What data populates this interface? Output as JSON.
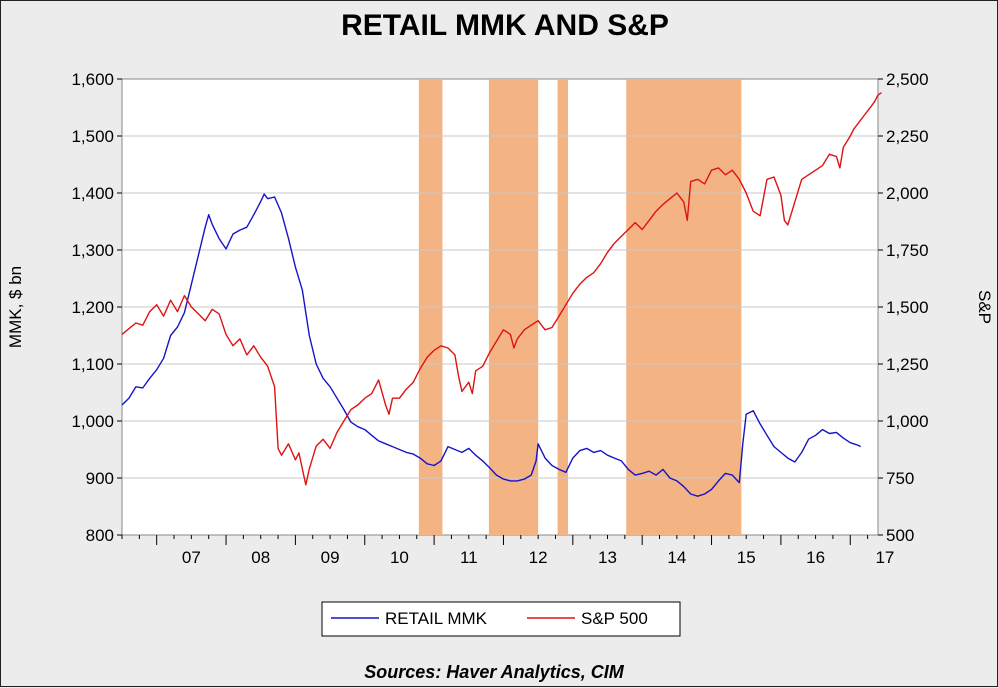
{
  "chart_data": {
    "type": "line",
    "title": "RETAIL MMK AND S&P",
    "ylabel_left": "MMK, $ bn",
    "ylabel_right": "S&P",
    "source": "Sources:  Haver Analytics, CIM",
    "x_ticks": [
      "07",
      "08",
      "09",
      "10",
      "11",
      "12",
      "13",
      "14",
      "15",
      "16",
      "17"
    ],
    "x_range": [
      2006.5,
      2017.4
    ],
    "y_left": {
      "range": [
        800,
        1600
      ],
      "ticks": [
        "800",
        "900",
        "1,000",
        "1,100",
        "1,200",
        "1,300",
        "1,400",
        "1,500",
        "1,600"
      ],
      "tick_values": [
        800,
        900,
        1000,
        1100,
        1200,
        1300,
        1400,
        1500,
        1600
      ]
    },
    "y_right": {
      "range": [
        500,
        2500
      ],
      "ticks": [
        "500",
        "750",
        "1,000",
        "1,250",
        "1,500",
        "1,750",
        "2,000",
        "2,250",
        "2,500"
      ],
      "tick_values": [
        500,
        750,
        1000,
        1250,
        1500,
        1750,
        2000,
        2250,
        2500
      ]
    },
    "grid": true,
    "legend_position": "bottom",
    "shaded_periods": [
      [
        2010.78,
        2011.12
      ],
      [
        2011.79,
        2012.5
      ],
      [
        2012.78,
        2012.93
      ],
      [
        2013.77,
        2015.43
      ]
    ],
    "shade_color": "#f3b383",
    "series": [
      {
        "name": "RETAIL MMK",
        "axis": "left",
        "color": "#1515c8",
        "points": [
          [
            2006.5,
            1028
          ],
          [
            2006.6,
            1040
          ],
          [
            2006.7,
            1060
          ],
          [
            2006.8,
            1058
          ],
          [
            2006.9,
            1075
          ],
          [
            2007.0,
            1090
          ],
          [
            2007.1,
            1110
          ],
          [
            2007.2,
            1150
          ],
          [
            2007.3,
            1165
          ],
          [
            2007.4,
            1190
          ],
          [
            2007.5,
            1240
          ],
          [
            2007.6,
            1290
          ],
          [
            2007.7,
            1340
          ],
          [
            2007.75,
            1362
          ],
          [
            2007.8,
            1345
          ],
          [
            2007.9,
            1320
          ],
          [
            2008.0,
            1302
          ],
          [
            2008.1,
            1328
          ],
          [
            2008.2,
            1335
          ],
          [
            2008.3,
            1340
          ],
          [
            2008.4,
            1362
          ],
          [
            2008.5,
            1385
          ],
          [
            2008.55,
            1398
          ],
          [
            2008.6,
            1390
          ],
          [
            2008.7,
            1393
          ],
          [
            2008.8,
            1365
          ],
          [
            2008.9,
            1320
          ],
          [
            2009.0,
            1270
          ],
          [
            2009.1,
            1230
          ],
          [
            2009.2,
            1150
          ],
          [
            2009.3,
            1100
          ],
          [
            2009.4,
            1075
          ],
          [
            2009.5,
            1060
          ],
          [
            2009.6,
            1040
          ],
          [
            2009.7,
            1020
          ],
          [
            2009.8,
            998
          ],
          [
            2009.9,
            990
          ],
          [
            2010.0,
            985
          ],
          [
            2010.1,
            975
          ],
          [
            2010.2,
            965
          ],
          [
            2010.3,
            960
          ],
          [
            2010.4,
            955
          ],
          [
            2010.5,
            950
          ],
          [
            2010.6,
            945
          ],
          [
            2010.7,
            942
          ],
          [
            2010.8,
            935
          ],
          [
            2010.9,
            925
          ],
          [
            2011.0,
            922
          ],
          [
            2011.1,
            930
          ],
          [
            2011.2,
            955
          ],
          [
            2011.3,
            950
          ],
          [
            2011.4,
            945
          ],
          [
            2011.5,
            952
          ],
          [
            2011.6,
            940
          ],
          [
            2011.7,
            930
          ],
          [
            2011.8,
            918
          ],
          [
            2011.9,
            905
          ],
          [
            2012.0,
            898
          ],
          [
            2012.1,
            895
          ],
          [
            2012.2,
            895
          ],
          [
            2012.3,
            898
          ],
          [
            2012.4,
            905
          ],
          [
            2012.47,
            930
          ],
          [
            2012.5,
            960
          ],
          [
            2012.6,
            935
          ],
          [
            2012.7,
            922
          ],
          [
            2012.8,
            915
          ],
          [
            2012.9,
            910
          ],
          [
            2013.0,
            935
          ],
          [
            2013.1,
            948
          ],
          [
            2013.2,
            952
          ],
          [
            2013.3,
            945
          ],
          [
            2013.4,
            948
          ],
          [
            2013.5,
            940
          ],
          [
            2013.6,
            935
          ],
          [
            2013.7,
            930
          ],
          [
            2013.8,
            915
          ],
          [
            2013.9,
            905
          ],
          [
            2014.0,
            908
          ],
          [
            2014.1,
            912
          ],
          [
            2014.2,
            905
          ],
          [
            2014.3,
            915
          ],
          [
            2014.4,
            900
          ],
          [
            2014.5,
            895
          ],
          [
            2014.6,
            885
          ],
          [
            2014.7,
            872
          ],
          [
            2014.8,
            868
          ],
          [
            2014.9,
            872
          ],
          [
            2015.0,
            880
          ],
          [
            2015.1,
            895
          ],
          [
            2015.2,
            908
          ],
          [
            2015.3,
            905
          ],
          [
            2015.4,
            892
          ],
          [
            2015.45,
            960
          ],
          [
            2015.5,
            1012
          ],
          [
            2015.6,
            1018
          ],
          [
            2015.7,
            995
          ],
          [
            2015.8,
            975
          ],
          [
            2015.9,
            955
          ],
          [
            2016.0,
            945
          ],
          [
            2016.1,
            935
          ],
          [
            2016.2,
            928
          ],
          [
            2016.3,
            945
          ],
          [
            2016.4,
            968
          ],
          [
            2016.5,
            975
          ],
          [
            2016.6,
            985
          ],
          [
            2016.7,
            978
          ],
          [
            2016.8,
            980
          ],
          [
            2016.9,
            970
          ],
          [
            2017.0,
            962
          ],
          [
            2017.1,
            958
          ],
          [
            2017.15,
            955
          ]
        ]
      },
      {
        "name": "S&P 500",
        "axis": "right",
        "color": "#e01212",
        "points": [
          [
            2006.5,
            1380
          ],
          [
            2006.6,
            1405
          ],
          [
            2006.7,
            1430
          ],
          [
            2006.8,
            1420
          ],
          [
            2006.9,
            1480
          ],
          [
            2007.0,
            1510
          ],
          [
            2007.1,
            1460
          ],
          [
            2007.2,
            1530
          ],
          [
            2007.3,
            1480
          ],
          [
            2007.4,
            1550
          ],
          [
            2007.5,
            1500
          ],
          [
            2007.6,
            1470
          ],
          [
            2007.7,
            1440
          ],
          [
            2007.8,
            1490
          ],
          [
            2007.9,
            1470
          ],
          [
            2008.0,
            1380
          ],
          [
            2008.1,
            1330
          ],
          [
            2008.2,
            1360
          ],
          [
            2008.3,
            1290
          ],
          [
            2008.4,
            1330
          ],
          [
            2008.5,
            1280
          ],
          [
            2008.6,
            1240
          ],
          [
            2008.7,
            1150
          ],
          [
            2008.75,
            880
          ],
          [
            2008.8,
            850
          ],
          [
            2008.9,
            900
          ],
          [
            2009.0,
            830
          ],
          [
            2009.05,
            860
          ],
          [
            2009.15,
            720
          ],
          [
            2009.2,
            790
          ],
          [
            2009.3,
            890
          ],
          [
            2009.4,
            920
          ],
          [
            2009.5,
            880
          ],
          [
            2009.6,
            950
          ],
          [
            2009.7,
            1000
          ],
          [
            2009.8,
            1050
          ],
          [
            2009.9,
            1070
          ],
          [
            2010.0,
            1100
          ],
          [
            2010.1,
            1120
          ],
          [
            2010.2,
            1180
          ],
          [
            2010.3,
            1070
          ],
          [
            2010.35,
            1030
          ],
          [
            2010.4,
            1100
          ],
          [
            2010.5,
            1100
          ],
          [
            2010.6,
            1140
          ],
          [
            2010.7,
            1170
          ],
          [
            2010.8,
            1230
          ],
          [
            2010.9,
            1280
          ],
          [
            2011.0,
            1310
          ],
          [
            2011.1,
            1330
          ],
          [
            2011.2,
            1320
          ],
          [
            2011.3,
            1290
          ],
          [
            2011.35,
            1200
          ],
          [
            2011.4,
            1130
          ],
          [
            2011.5,
            1170
          ],
          [
            2011.55,
            1120
          ],
          [
            2011.6,
            1220
          ],
          [
            2011.7,
            1240
          ],
          [
            2011.8,
            1300
          ],
          [
            2011.9,
            1350
          ],
          [
            2012.0,
            1400
          ],
          [
            2012.1,
            1380
          ],
          [
            2012.15,
            1320
          ],
          [
            2012.2,
            1360
          ],
          [
            2012.3,
            1400
          ],
          [
            2012.4,
            1420
          ],
          [
            2012.5,
            1440
          ],
          [
            2012.6,
            1400
          ],
          [
            2012.7,
            1410
          ],
          [
            2012.8,
            1460
          ],
          [
            2012.9,
            1510
          ],
          [
            2013.0,
            1560
          ],
          [
            2013.1,
            1600
          ],
          [
            2013.2,
            1630
          ],
          [
            2013.3,
            1650
          ],
          [
            2013.4,
            1690
          ],
          [
            2013.5,
            1740
          ],
          [
            2013.6,
            1780
          ],
          [
            2013.7,
            1810
          ],
          [
            2013.8,
            1840
          ],
          [
            2013.9,
            1870
          ],
          [
            2014.0,
            1840
          ],
          [
            2014.1,
            1880
          ],
          [
            2014.2,
            1920
          ],
          [
            2014.3,
            1950
          ],
          [
            2014.4,
            1975
          ],
          [
            2014.5,
            2000
          ],
          [
            2014.6,
            1960
          ],
          [
            2014.65,
            1880
          ],
          [
            2014.7,
            2050
          ],
          [
            2014.8,
            2060
          ],
          [
            2014.9,
            2040
          ],
          [
            2015.0,
            2100
          ],
          [
            2015.1,
            2110
          ],
          [
            2015.2,
            2080
          ],
          [
            2015.3,
            2100
          ],
          [
            2015.4,
            2060
          ],
          [
            2015.5,
            2000
          ],
          [
            2015.6,
            1920
          ],
          [
            2015.7,
            1900
          ],
          [
            2015.8,
            2060
          ],
          [
            2015.9,
            2070
          ],
          [
            2016.0,
            1990
          ],
          [
            2016.05,
            1880
          ],
          [
            2016.1,
            1860
          ],
          [
            2016.2,
            1960
          ],
          [
            2016.3,
            2060
          ],
          [
            2016.4,
            2080
          ],
          [
            2016.5,
            2100
          ],
          [
            2016.6,
            2120
          ],
          [
            2016.7,
            2170
          ],
          [
            2016.8,
            2160
          ],
          [
            2016.85,
            2110
          ],
          [
            2016.9,
            2200
          ],
          [
            2017.0,
            2250
          ],
          [
            2017.05,
            2280
          ],
          [
            2017.1,
            2300
          ],
          [
            2017.2,
            2340
          ],
          [
            2017.3,
            2380
          ],
          [
            2017.35,
            2400
          ],
          [
            2017.4,
            2430
          ],
          [
            2017.45,
            2440
          ]
        ]
      }
    ]
  }
}
